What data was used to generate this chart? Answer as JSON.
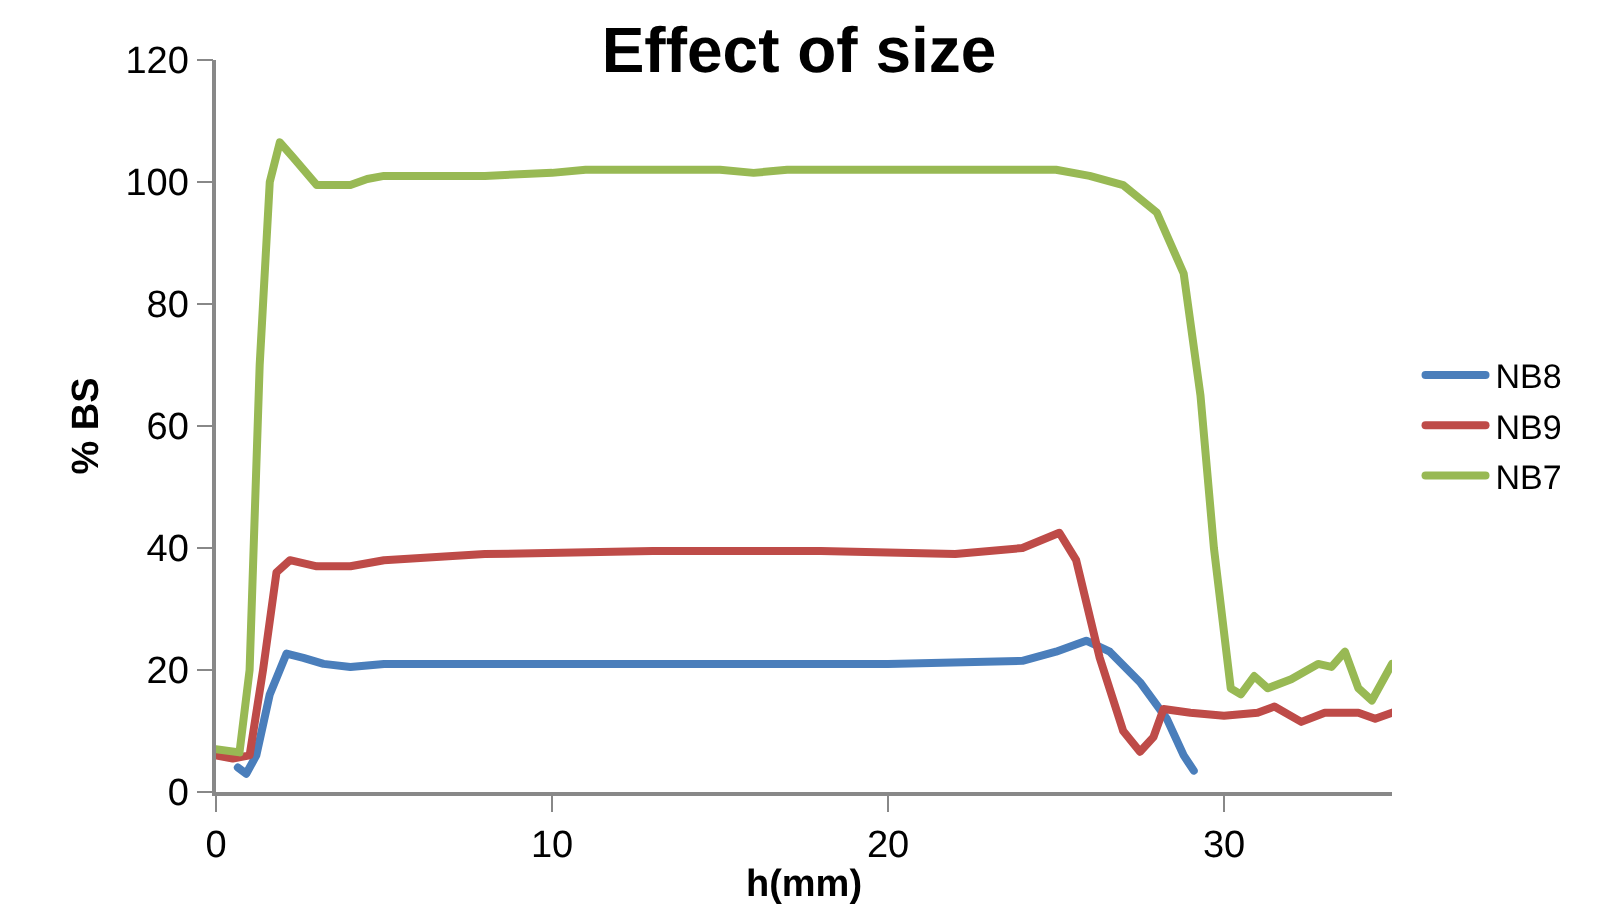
{
  "chart_data": {
    "type": "line",
    "title": "Effect of size",
    "xlabel": "h(mm)",
    "ylabel": "% BS",
    "xlim": [
      0,
      35
    ],
    "xticks": [
      0,
      10,
      20,
      30
    ],
    "ylim": [
      0,
      120
    ],
    "yticks": [
      0,
      20,
      40,
      60,
      80,
      100,
      120
    ],
    "legend": "right",
    "marker": "none",
    "line_style": "solid",
    "series": [
      {
        "name": "NB8",
        "color": "#4a7ebb",
        "x": [
          0.65,
          0.9,
          1.2,
          1.6,
          2.1,
          2.6,
          3.2,
          4,
          5,
          8,
          12,
          16,
          20,
          24,
          25,
          25.9,
          26.6,
          27.5,
          28.3,
          28.8,
          29.1
        ],
        "values": [
          4,
          3,
          6,
          16,
          22.7,
          22,
          21,
          20.5,
          21,
          21,
          21,
          21,
          21,
          21.5,
          23,
          24.8,
          23,
          18,
          12,
          6,
          3.5
        ]
      },
      {
        "name": "NB9",
        "color": "#be4b48",
        "x": [
          0,
          0.5,
          1,
          1.4,
          1.8,
          2.2,
          3,
          4,
          5,
          8,
          13,
          18,
          22,
          24,
          25.1,
          25.6,
          26.3,
          27,
          27.5,
          27.9,
          28.2,
          29,
          30,
          31,
          31.5,
          32.3,
          33,
          34,
          34.5,
          35
        ],
        "values": [
          6,
          5.5,
          6,
          20,
          36,
          38,
          37,
          37,
          38,
          39,
          39.5,
          39.5,
          39,
          40,
          42.5,
          38,
          22,
          10,
          6.6,
          9,
          13.6,
          13,
          12.5,
          13,
          14,
          11.5,
          13,
          13,
          12,
          13
        ]
      },
      {
        "name": "NB7",
        "color": "#98b954",
        "x": [
          0,
          0.7,
          1,
          1.3,
          1.6,
          1.9,
          2.3,
          3,
          4,
          4.5,
          5,
          8,
          10,
          11,
          15,
          16,
          17,
          25,
          26,
          27,
          28,
          28.8,
          29.3,
          29.7,
          30.2,
          30.5,
          30.9,
          31.3,
          32,
          32.8,
          33.2,
          33.6,
          34,
          34.4,
          35
        ],
        "values": [
          7,
          6.5,
          20,
          70,
          100,
          106.5,
          104,
          99.5,
          99.5,
          100.5,
          101,
          101,
          101.5,
          102,
          102,
          101.5,
          102,
          102,
          101,
          99.5,
          95,
          85,
          65,
          40,
          17,
          16,
          19,
          17,
          18.5,
          21,
          20.5,
          23,
          17,
          15,
          21
        ]
      }
    ]
  }
}
